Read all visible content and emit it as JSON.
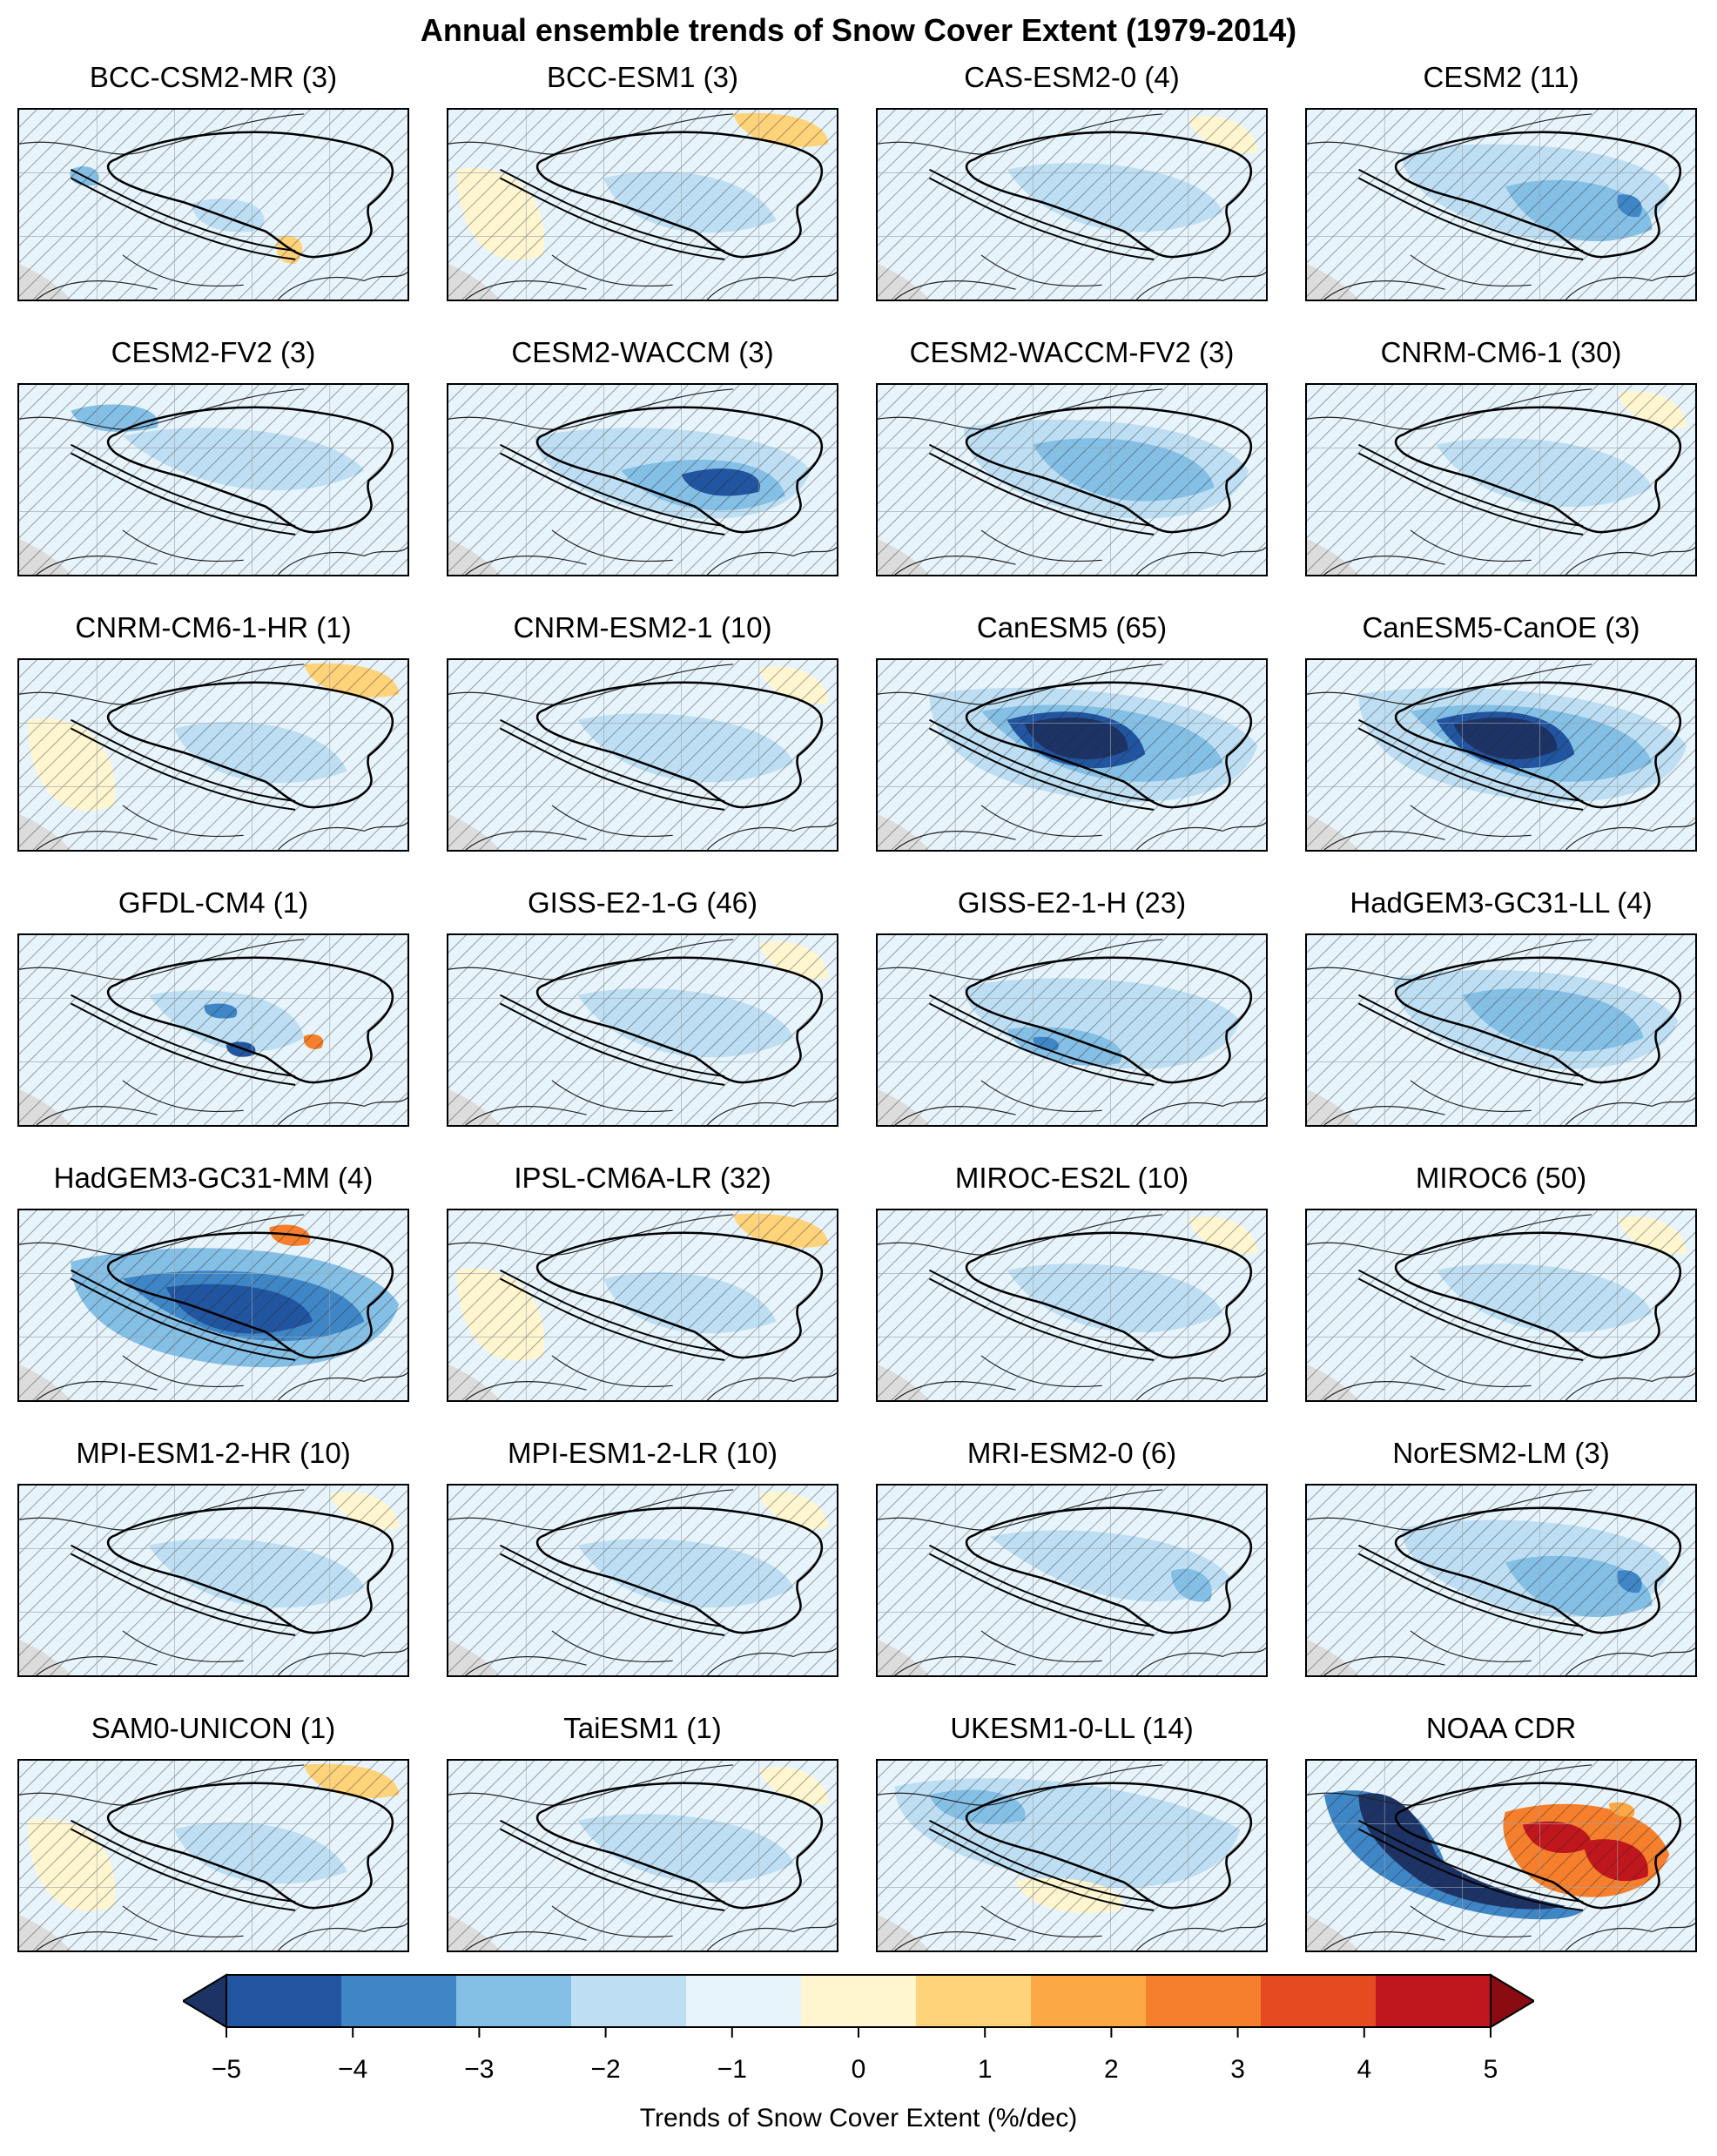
{
  "title": "Annual ensemble trends of Snow Cover Extent (1979-2014)",
  "colors": {
    "bins": [
      "#1d3366",
      "#2255a0",
      "#3f86c6",
      "#84bfe6",
      "#bedff3",
      "#e7f4fb",
      "#fff6cf",
      "#ffd37a",
      "#fca845",
      "#f57f2c",
      "#e64a21",
      "#c0161d",
      "#8a0b12"
    ],
    "land_mask": "#dcdcdc",
    "hatch": "#222222",
    "boundary": "#000000"
  },
  "panels": [
    {
      "name": "BCC-CSM2-MR (3)",
      "pattern": "mixed-weak"
    },
    {
      "name": "BCC-ESM1 (3)",
      "pattern": "mixed-warm"
    },
    {
      "name": "CAS-ESM2-0 (4)",
      "pattern": "weak"
    },
    {
      "name": "CESM2 (11)",
      "pattern": "moderate-east"
    },
    {
      "name": "CESM2-FV2 (3)",
      "pattern": "weak-west"
    },
    {
      "name": "CESM2-WACCM (3)",
      "pattern": "strong-southeast"
    },
    {
      "name": "CESM2-WACCM-FV2 (3)",
      "pattern": "moderate"
    },
    {
      "name": "CNRM-CM6-1 (30)",
      "pattern": "weak"
    },
    {
      "name": "CNRM-CM6-1-HR (1)",
      "pattern": "mixed-warm"
    },
    {
      "name": "CNRM-ESM2-1 (10)",
      "pattern": "weak"
    },
    {
      "name": "CanESM5 (65)",
      "pattern": "very-strong-center"
    },
    {
      "name": "CanESM5-CanOE (3)",
      "pattern": "very-strong-center"
    },
    {
      "name": "GFDL-CM4 (1)",
      "pattern": "mixed-dipole"
    },
    {
      "name": "GISS-E2-1-G (46)",
      "pattern": "weak"
    },
    {
      "name": "GISS-E2-1-H (23)",
      "pattern": "moderate-south"
    },
    {
      "name": "HadGEM3-GC31-LL (4)",
      "pattern": "moderate"
    },
    {
      "name": "HadGEM3-GC31-MM (4)",
      "pattern": "strong-plateau"
    },
    {
      "name": "IPSL-CM6A-LR (32)",
      "pattern": "mixed-warm"
    },
    {
      "name": "MIROC-ES2L (10)",
      "pattern": "weak"
    },
    {
      "name": "MIROC6 (50)",
      "pattern": "weak"
    },
    {
      "name": "MPI-ESM1-2-HR (10)",
      "pattern": "weak"
    },
    {
      "name": "MPI-ESM1-2-LR (10)",
      "pattern": "weak"
    },
    {
      "name": "MRI-ESM2-0 (6)",
      "pattern": "weak-east"
    },
    {
      "name": "NorESM2-LM (3)",
      "pattern": "moderate-east"
    },
    {
      "name": "SAM0-UNICON (1)",
      "pattern": "mixed-warm"
    },
    {
      "name": "TaiESM1 (1)",
      "pattern": "weak"
    },
    {
      "name": "UKESM1-0-LL (14)",
      "pattern": "moderate-west"
    },
    {
      "name": "NOAA CDR",
      "pattern": "observed-dipole"
    }
  ],
  "colorbar": {
    "ticks": [
      "−5",
      "−4",
      "−3",
      "−2",
      "−1",
      "0",
      "1",
      "2",
      "3",
      "4",
      "5"
    ],
    "tick_values": [
      -5,
      -4,
      -3,
      -2,
      -1,
      0,
      1,
      2,
      3,
      4,
      5
    ],
    "extend": "both",
    "label": "Trends of Snow Cover Extent (%/dec)"
  }
}
